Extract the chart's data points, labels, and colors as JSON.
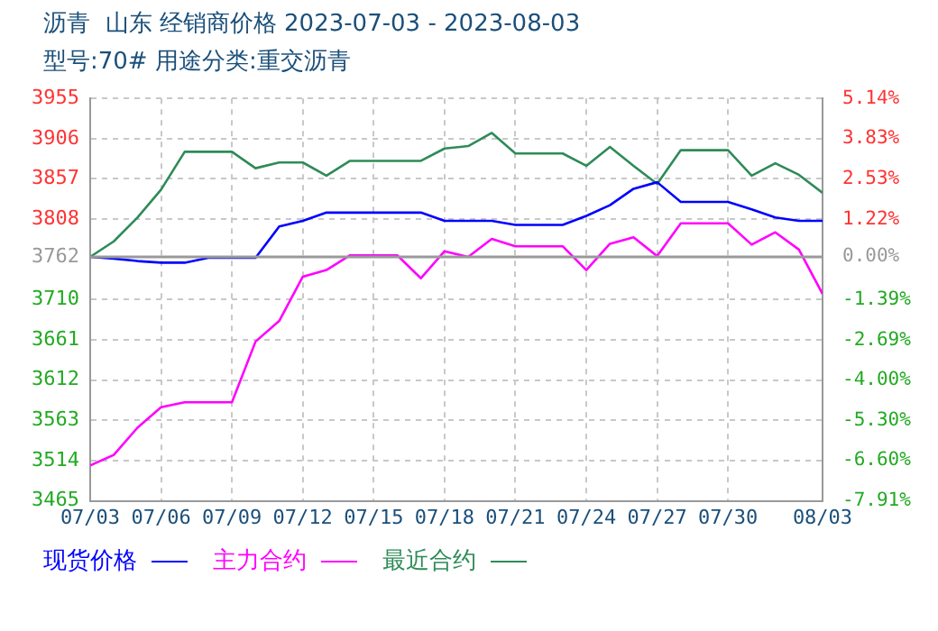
{
  "chart_data": {
    "type": "line",
    "title": "沥青  山东 经销商价格 2023-07-03 - 2023-08-03",
    "subtitle": "型号:70# 用途分类:重交沥青",
    "x": [
      "2023-07-03",
      "2023-07-04",
      "2023-07-05",
      "2023-07-06",
      "2023-07-07",
      "2023-07-08",
      "2023-07-09",
      "2023-07-10",
      "2023-07-11",
      "2023-07-12",
      "2023-07-13",
      "2023-07-14",
      "2023-07-15",
      "2023-07-16",
      "2023-07-17",
      "2023-07-18",
      "2023-07-19",
      "2023-07-20",
      "2023-07-21",
      "2023-07-22",
      "2023-07-23",
      "2023-07-24",
      "2023-07-25",
      "2023-07-26",
      "2023-07-27",
      "2023-07-28",
      "2023-07-29",
      "2023-07-30",
      "2023-07-31",
      "2023-08-01",
      "2023-08-02",
      "2023-08-03"
    ],
    "series": [
      {
        "name": "现货价格",
        "color": "#0000ff",
        "values": [
          3762,
          3760,
          3757,
          3755,
          3755,
          3761,
          3761,
          3761,
          3799,
          3806,
          3816,
          3816,
          3816,
          3816,
          3816,
          3806,
          3806,
          3806,
          3801,
          3801,
          3801,
          3812,
          3825,
          3845,
          3853,
          3829,
          3829,
          3829,
          3820,
          3810,
          3806,
          3806
        ]
      },
      {
        "name": "主力合约",
        "color": "#ff00ff",
        "values": [
          3508,
          3521,
          3554,
          3579,
          3585,
          3585,
          3585,
          3659,
          3684,
          3738,
          3746,
          3764,
          3764,
          3764,
          3736,
          3769,
          3762,
          3784,
          3775,
          3775,
          3775,
          3746,
          3778,
          3786,
          3763,
          3803,
          3803,
          3803,
          3777,
          3792,
          3771,
          3717
        ]
      },
      {
        "name": "最近合约",
        "color": "#2e8b57",
        "values": [
          3762,
          3781,
          3810,
          3844,
          3890,
          3890,
          3890,
          3870,
          3877,
          3877,
          3861,
          3879,
          3879,
          3879,
          3879,
          3894,
          3897,
          3913,
          3888,
          3888,
          3888,
          3873,
          3896,
          3873,
          3851,
          3892,
          3892,
          3892,
          3861,
          3876,
          3862,
          3840
        ]
      }
    ],
    "xlim": [
      "2023-07-03",
      "2023-08-03"
    ],
    "xticks": [
      {
        "value": "2023-07-03",
        "label": "07/03"
      },
      {
        "value": "2023-07-06",
        "label": "07/06"
      },
      {
        "value": "2023-07-09",
        "label": "07/09"
      },
      {
        "value": "2023-07-12",
        "label": "07/12"
      },
      {
        "value": "2023-07-15",
        "label": "07/15"
      },
      {
        "value": "2023-07-18",
        "label": "07/18"
      },
      {
        "value": "2023-07-21",
        "label": "07/21"
      },
      {
        "value": "2023-07-24",
        "label": "07/24"
      },
      {
        "value": "2023-07-27",
        "label": "07/27"
      },
      {
        "value": "2023-07-30",
        "label": "07/30"
      },
      {
        "value": "2023-08-03",
        "label": "08/03"
      }
    ],
    "ylim": [
      3465,
      3955
    ],
    "yticks": [
      3955,
      3906,
      3857,
      3808,
      3762,
      3710,
      3661,
      3612,
      3563,
      3514,
      3465
    ],
    "y2lim": [
      -7.91,
      5.14
    ],
    "y2ticks": [
      {
        "value": 5.14,
        "label": "5.14%"
      },
      {
        "value": 3.83,
        "label": "3.83%"
      },
      {
        "value": 2.53,
        "label": "2.53%"
      },
      {
        "value": 1.22,
        "label": "1.22%"
      },
      {
        "value": 0,
        "label": "0.00%"
      },
      {
        "value": -1.39,
        "label": "-1.39%"
      },
      {
        "value": -2.69,
        "label": "-2.69%"
      },
      {
        "value": -4.0,
        "label": "-4.00%"
      },
      {
        "value": -5.3,
        "label": "-5.30%"
      },
      {
        "value": -6.6,
        "label": "-6.60%"
      },
      {
        "value": -7.91,
        "label": "-7.91%"
      }
    ],
    "ref_lines": [
      {
        "axis": "y2",
        "value": 0,
        "color": "#999999"
      }
    ],
    "grid": true,
    "legend": "bottom left",
    "marker": "none",
    "line_style": "solid"
  }
}
